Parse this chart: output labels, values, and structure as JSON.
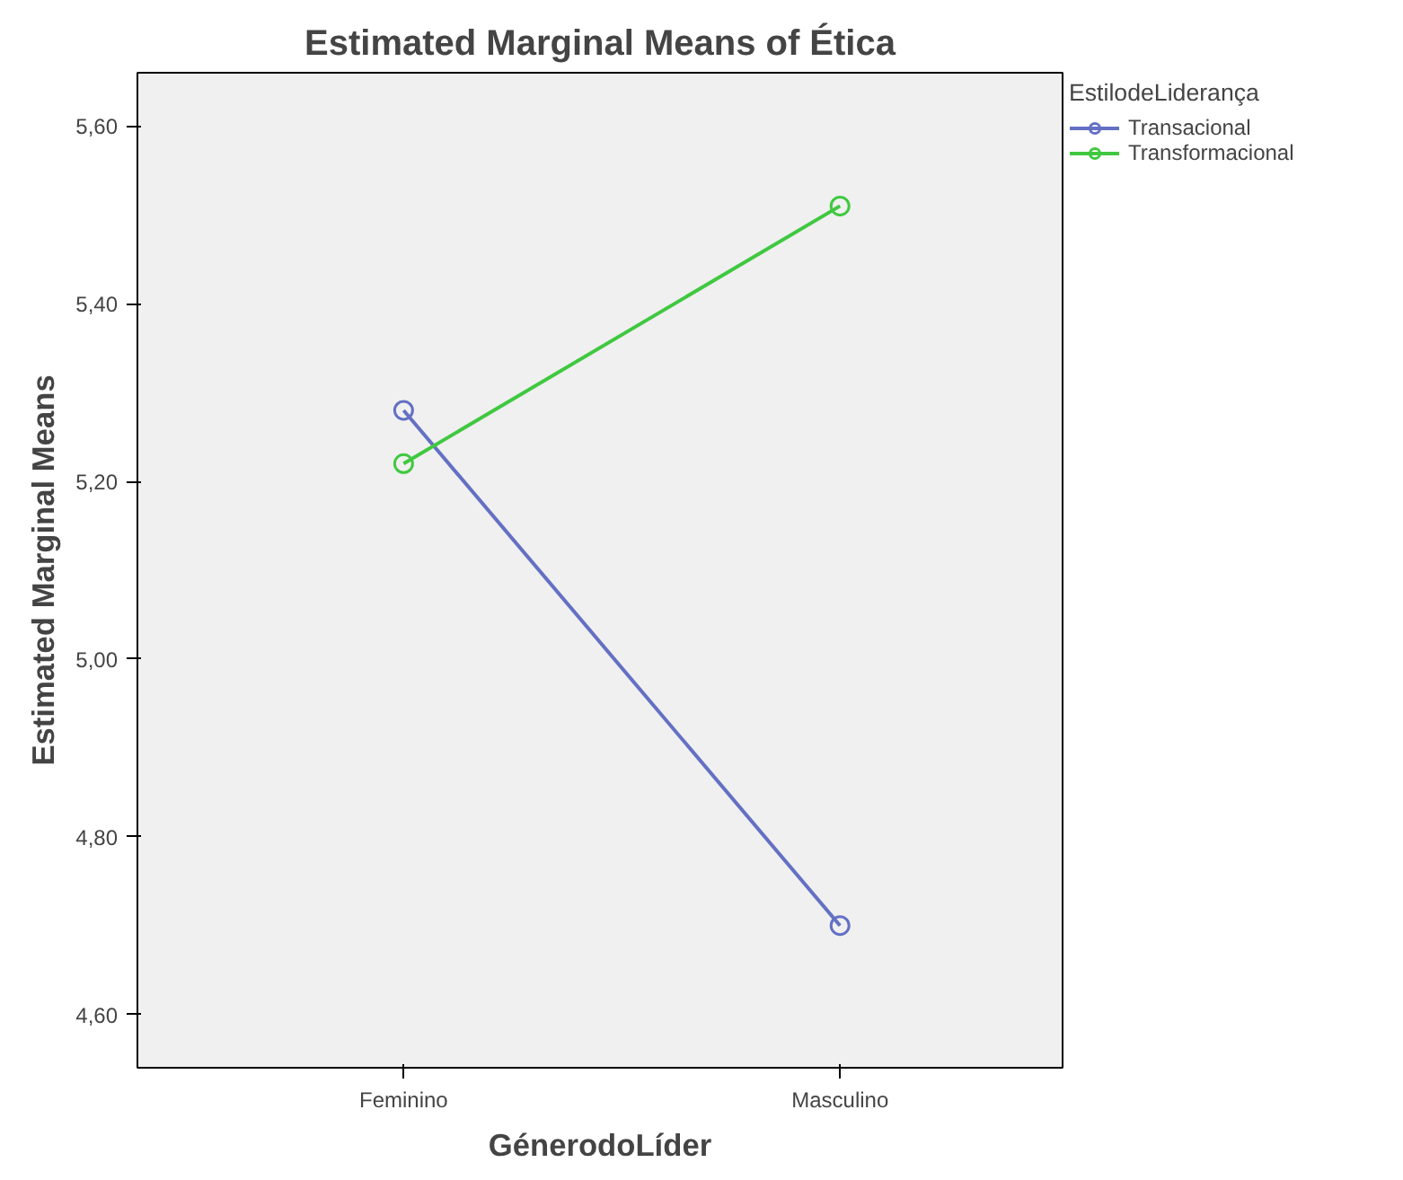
{
  "chart_data": {
    "type": "line",
    "title": "Estimated Marginal Means of Ética",
    "xlabel": "GénerodoLíder",
    "ylabel": "Estimated Marginal Means",
    "legend_title": "EstilodeLiderança",
    "categories": [
      "Feminino",
      "Masculino"
    ],
    "series": [
      {
        "name": "Transacional",
        "color": "#6470c4",
        "values": [
          5.28,
          4.7
        ]
      },
      {
        "name": "Transformacional",
        "color": "#40c840",
        "values": [
          5.22,
          5.51
        ]
      }
    ],
    "ylim": [
      4.54,
      5.66
    ],
    "yticks": [
      {
        "value": 4.6,
        "label": "4,60"
      },
      {
        "value": 4.8,
        "label": "4,80"
      },
      {
        "value": 5.0,
        "label": "5,00"
      },
      {
        "value": 5.2,
        "label": "5,20"
      },
      {
        "value": 5.4,
        "label": "5,40"
      },
      {
        "value": 5.6,
        "label": "5,60"
      }
    ],
    "marker": "circle",
    "line_style": "solid",
    "grid": false,
    "legend": "top right"
  }
}
